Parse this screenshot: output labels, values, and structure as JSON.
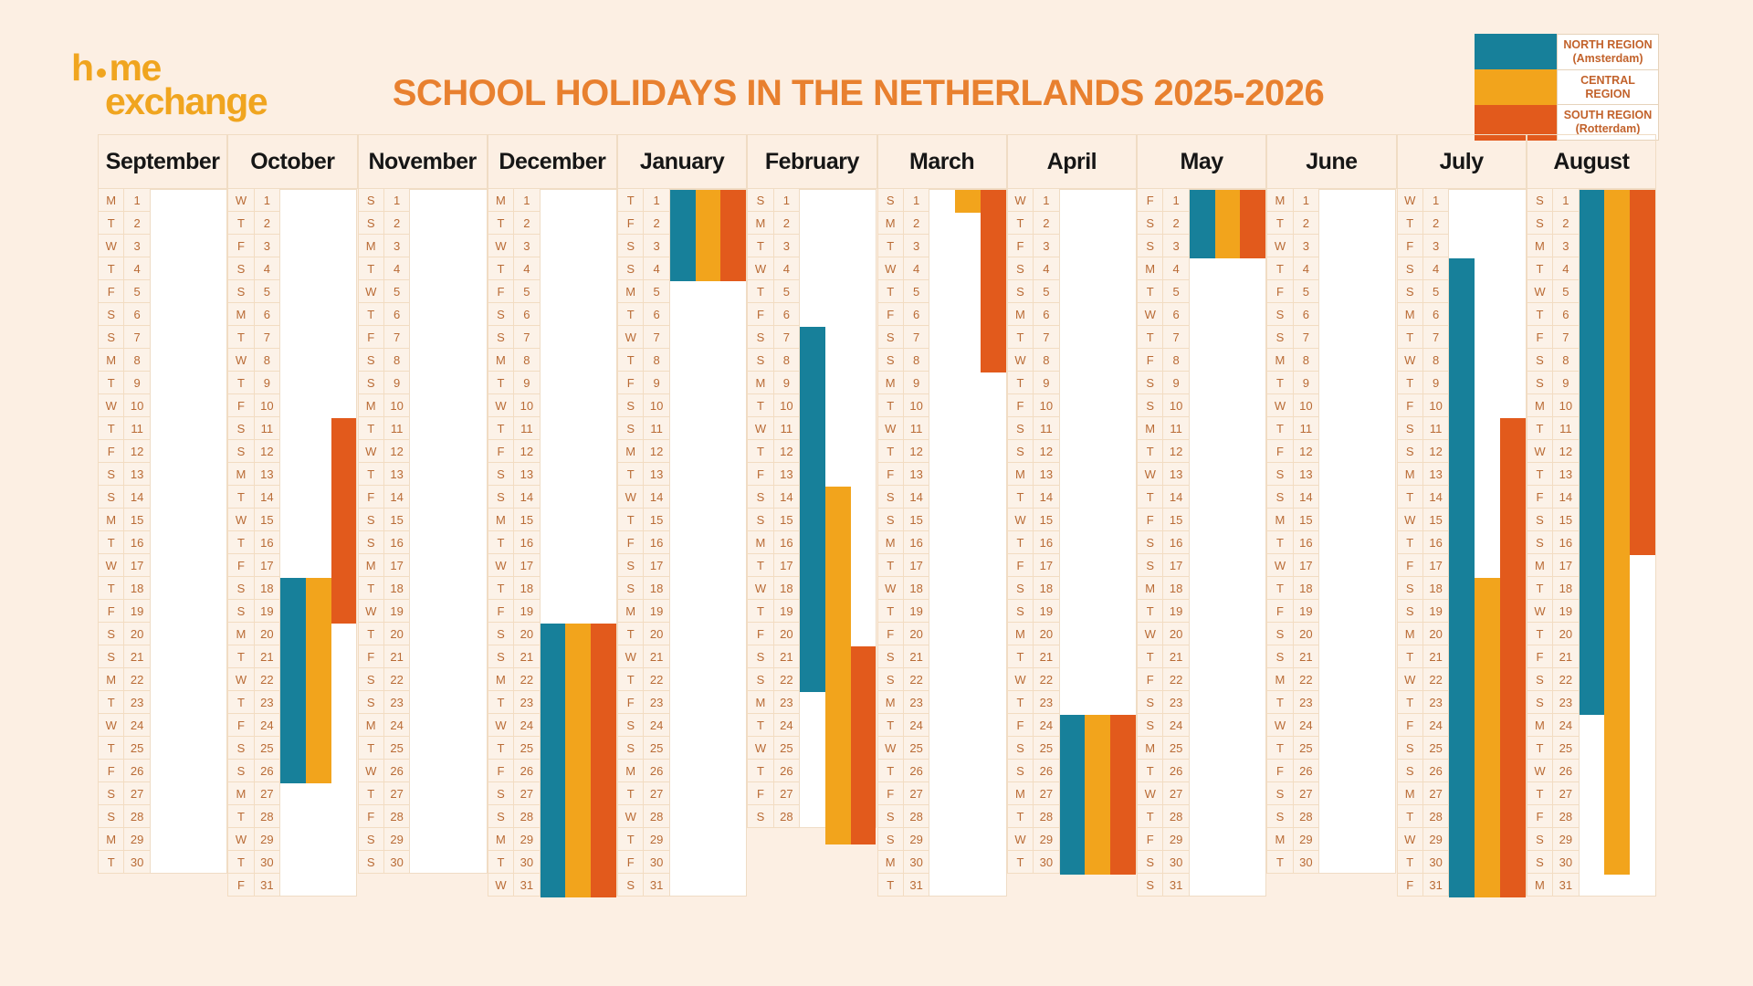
{
  "page": {
    "background": "#FCEFE3"
  },
  "logo": {
    "line1_pre": "h",
    "line1_post": "me",
    "line2": "exchange",
    "color": "#F0A51F"
  },
  "title": {
    "text": "SCHOOL HOLIDAYS IN THE NETHERLANDS 2025-2026",
    "color": "#E8802F"
  },
  "legend": {
    "items": [
      {
        "region": "north",
        "color": "#17809A",
        "label_line1": "NORTH REGION",
        "label_line2": "(Amsterdam)"
      },
      {
        "region": "central",
        "color": "#F2A41C",
        "label_line1": "CENTRAL",
        "label_line2": "REGION"
      },
      {
        "region": "south",
        "color": "#E25A1C",
        "label_line1": "SOUTH REGION",
        "label_line2": "(Rotterdam)"
      }
    ]
  },
  "calendar": {
    "day_letters": [
      "M",
      "T",
      "W",
      "T",
      "F",
      "S",
      "S"
    ],
    "region_order": [
      "north",
      "central",
      "south"
    ],
    "region_colors": {
      "north": "#17809A",
      "central": "#F2A41C",
      "south": "#E25A1C"
    },
    "months": [
      {
        "name": "September",
        "days": 30,
        "start_dow": 0,
        "holidays": []
      },
      {
        "name": "October",
        "days": 31,
        "start_dow": 2,
        "holidays": [
          {
            "region": "north",
            "start": 18,
            "end": 26
          },
          {
            "region": "central",
            "start": 18,
            "end": 26
          },
          {
            "region": "south",
            "start": 11,
            "end": 19
          }
        ]
      },
      {
        "name": "November",
        "days": 30,
        "start_dow": 5,
        "holidays": []
      },
      {
        "name": "December",
        "days": 31,
        "start_dow": 0,
        "holidays": [
          {
            "region": "north",
            "start": 20,
            "end": 31
          },
          {
            "region": "central",
            "start": 20,
            "end": 31
          },
          {
            "region": "south",
            "start": 20,
            "end": 31
          }
        ]
      },
      {
        "name": "January",
        "days": 31,
        "start_dow": 3,
        "holidays": [
          {
            "region": "north",
            "start": 1,
            "end": 4
          },
          {
            "region": "central",
            "start": 1,
            "end": 4
          },
          {
            "region": "south",
            "start": 1,
            "end": 4
          }
        ]
      },
      {
        "name": "February",
        "days": 28,
        "start_dow": 6,
        "holidays": [
          {
            "region": "north",
            "start": 7,
            "end": 22
          },
          {
            "region": "central",
            "start": 14,
            "end": 28,
            "bleed": true
          },
          {
            "region": "south",
            "start": 21,
            "end": 28,
            "bleed": true
          }
        ]
      },
      {
        "name": "March",
        "days": 31,
        "start_dow": 6,
        "holidays": [
          {
            "region": "central",
            "start": 1,
            "end": 1
          },
          {
            "region": "south",
            "start": 1,
            "end": 8
          }
        ]
      },
      {
        "name": "April",
        "days": 30,
        "start_dow": 2,
        "holidays": [
          {
            "region": "north",
            "start": 24,
            "end": 30
          },
          {
            "region": "central",
            "start": 24,
            "end": 30
          },
          {
            "region": "south",
            "start": 24,
            "end": 30
          }
        ]
      },
      {
        "name": "May",
        "days": 31,
        "start_dow": 4,
        "holidays": [
          {
            "region": "north",
            "start": 1,
            "end": 3
          },
          {
            "region": "central",
            "start": 1,
            "end": 3
          },
          {
            "region": "south",
            "start": 1,
            "end": 3
          }
        ]
      },
      {
        "name": "June",
        "days": 30,
        "start_dow": 0,
        "holidays": []
      },
      {
        "name": "July",
        "days": 31,
        "start_dow": 2,
        "holidays": [
          {
            "region": "north",
            "start": 4,
            "end": 31
          },
          {
            "region": "central",
            "start": 18,
            "end": 31
          },
          {
            "region": "south",
            "start": 11,
            "end": 31
          }
        ]
      },
      {
        "name": "August",
        "days": 31,
        "start_dow": 5,
        "holidays": [
          {
            "region": "north",
            "start": 1,
            "end": 23
          },
          {
            "region": "central",
            "start": 1,
            "end": 30
          },
          {
            "region": "south",
            "start": 1,
            "end": 16
          }
        ]
      }
    ]
  },
  "chart_data": {
    "type": "bar",
    "title": "SCHOOL HOLIDAYS IN THE NETHERLANDS 2025-2026",
    "x": "months September 2025 - August 2026, one column per month, rows = days 1-31",
    "legend_position": "top-right",
    "series": [
      {
        "name": "NORTH REGION (Amsterdam)",
        "color": "#17809A",
        "holidays": [
          {
            "from": "2025-10-18",
            "to": "2025-10-26"
          },
          {
            "from": "2025-12-20",
            "to": "2026-01-04"
          },
          {
            "from": "2026-02-07",
            "to": "2026-02-22"
          },
          {
            "from": "2026-04-24",
            "to": "2026-05-03"
          },
          {
            "from": "2026-07-04",
            "to": "2026-08-23"
          }
        ]
      },
      {
        "name": "CENTRAL REGION",
        "color": "#F2A41C",
        "holidays": [
          {
            "from": "2025-10-18",
            "to": "2025-10-26"
          },
          {
            "from": "2025-12-20",
            "to": "2026-01-04"
          },
          {
            "from": "2026-02-14",
            "to": "2026-03-01"
          },
          {
            "from": "2026-04-24",
            "to": "2026-05-03"
          },
          {
            "from": "2026-07-18",
            "to": "2026-08-30"
          }
        ]
      },
      {
        "name": "SOUTH REGION (Rotterdam)",
        "color": "#E25A1C",
        "holidays": [
          {
            "from": "2025-10-11",
            "to": "2025-10-19"
          },
          {
            "from": "2025-12-20",
            "to": "2026-01-04"
          },
          {
            "from": "2026-02-21",
            "to": "2026-03-08"
          },
          {
            "from": "2026-04-24",
            "to": "2026-05-03"
          },
          {
            "from": "2026-07-11",
            "to": "2026-08-16"
          }
        ]
      }
    ]
  }
}
